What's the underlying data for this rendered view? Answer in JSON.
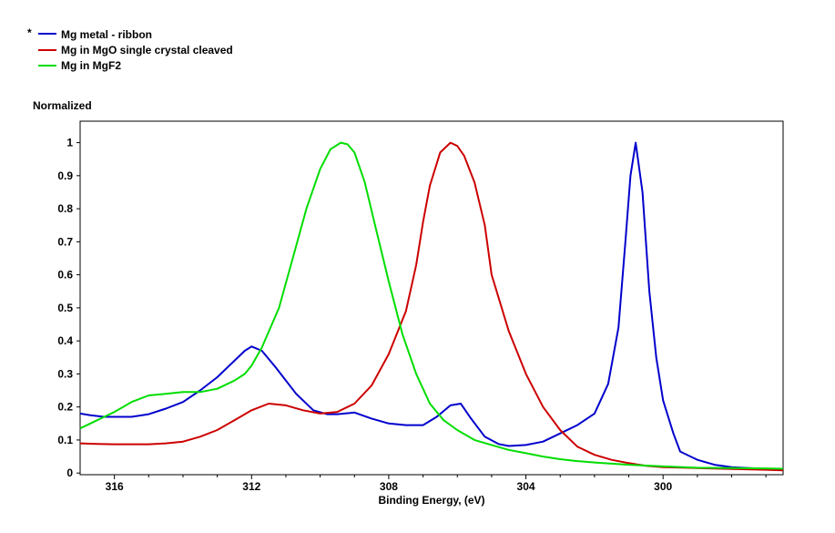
{
  "legend_marker": "*",
  "chart_data": {
    "type": "line",
    "title": "",
    "ylabel": "Normalized",
    "xlabel": "Binding Energy, (eV)",
    "xlim": [
      317.0,
      296.5
    ],
    "ylim": [
      -0.005,
      1.065
    ],
    "x_reversed": true,
    "grid": false,
    "legend_position": "top-left",
    "x_ticks": [
      316,
      312,
      308,
      304,
      300
    ],
    "y_ticks": [
      0,
      0.1,
      0.2,
      0.3,
      0.4,
      0.5,
      0.6,
      0.7,
      0.8,
      0.9,
      1
    ],
    "y_tick_labels": [
      "0",
      "0.1",
      "0.2",
      "0.3",
      "0.4",
      "0.5",
      "0.6",
      "0.7",
      "0.8",
      "0.9",
      "1"
    ],
    "x_tick_labels": [
      "316",
      "312",
      "308",
      "304",
      "300"
    ],
    "series": [
      {
        "name": "Mg metal - ribbon",
        "color": "#0000cc",
        "x": [
          317.0,
          316.7,
          316.3,
          316.0,
          315.5,
          315.0,
          314.5,
          314.0,
          313.5,
          313.0,
          312.5,
          312.2,
          312.0,
          311.7,
          311.3,
          310.7,
          310.2,
          309.8,
          309.5,
          309.0,
          308.5,
          308.0,
          307.5,
          307.0,
          306.6,
          306.2,
          305.9,
          305.6,
          305.2,
          304.8,
          304.5,
          304.0,
          303.5,
          303.0,
          302.5,
          302.0,
          301.6,
          301.3,
          301.1,
          300.95,
          300.8,
          300.6,
          300.4,
          300.2,
          300.0,
          299.7,
          299.5,
          299.0,
          298.5,
          298.0,
          297.5,
          297.0,
          296.5
        ],
        "y": [
          0.18,
          0.175,
          0.17,
          0.17,
          0.17,
          0.178,
          0.195,
          0.215,
          0.25,
          0.29,
          0.34,
          0.37,
          0.383,
          0.37,
          0.32,
          0.24,
          0.19,
          0.178,
          0.178,
          0.183,
          0.165,
          0.15,
          0.145,
          0.145,
          0.17,
          0.205,
          0.21,
          0.165,
          0.11,
          0.088,
          0.082,
          0.085,
          0.095,
          0.12,
          0.145,
          0.18,
          0.27,
          0.44,
          0.7,
          0.9,
          1.0,
          0.85,
          0.55,
          0.35,
          0.22,
          0.12,
          0.065,
          0.04,
          0.025,
          0.018,
          0.015,
          0.013,
          0.012
        ]
      },
      {
        "name": "Mg in MgO single crystal cleaved",
        "color": "#cc0000",
        "x": [
          317.0,
          316.5,
          316.0,
          315.5,
          315.0,
          314.5,
          314.0,
          313.5,
          313.0,
          312.5,
          312.0,
          311.5,
          311.0,
          310.5,
          310.0,
          309.5,
          309.0,
          308.5,
          308.0,
          307.5,
          307.2,
          307.0,
          306.8,
          306.5,
          306.2,
          306.0,
          305.8,
          305.5,
          305.2,
          305.0,
          304.5,
          304.0,
          303.5,
          303.0,
          302.5,
          302.0,
          301.5,
          301.0,
          300.5,
          300.0,
          299.0,
          298.0,
          297.0,
          296.5
        ],
        "y": [
          0.09,
          0.088,
          0.087,
          0.087,
          0.087,
          0.09,
          0.095,
          0.11,
          0.13,
          0.16,
          0.19,
          0.21,
          0.205,
          0.19,
          0.18,
          0.185,
          0.21,
          0.265,
          0.36,
          0.49,
          0.63,
          0.76,
          0.87,
          0.97,
          1.0,
          0.99,
          0.96,
          0.88,
          0.75,
          0.6,
          0.43,
          0.3,
          0.2,
          0.13,
          0.08,
          0.055,
          0.04,
          0.03,
          0.022,
          0.018,
          0.015,
          0.012,
          0.01,
          0.008
        ]
      },
      {
        "name": "Mg in MgF2",
        "color": "#00dd00",
        "x": [
          317.0,
          316.5,
          316.0,
          315.5,
          315.0,
          314.5,
          314.0,
          313.5,
          313.0,
          312.5,
          312.2,
          312.0,
          311.7,
          311.2,
          310.8,
          310.4,
          310.0,
          309.7,
          309.4,
          309.2,
          309.0,
          308.7,
          308.4,
          308.0,
          307.6,
          307.2,
          306.8,
          306.4,
          306.0,
          305.5,
          305.0,
          304.5,
          304.0,
          303.5,
          303.0,
          302.5,
          302.0,
          301.0,
          300.0,
          299.0,
          298.0,
          297.0,
          296.5
        ],
        "y": [
          0.135,
          0.16,
          0.185,
          0.215,
          0.235,
          0.24,
          0.245,
          0.245,
          0.255,
          0.28,
          0.3,
          0.325,
          0.38,
          0.5,
          0.65,
          0.8,
          0.92,
          0.98,
          1.0,
          0.995,
          0.97,
          0.88,
          0.75,
          0.58,
          0.42,
          0.3,
          0.21,
          0.16,
          0.13,
          0.1,
          0.085,
          0.07,
          0.06,
          0.05,
          0.042,
          0.036,
          0.032,
          0.025,
          0.02,
          0.016,
          0.015,
          0.014,
          0.013
        ]
      }
    ]
  }
}
